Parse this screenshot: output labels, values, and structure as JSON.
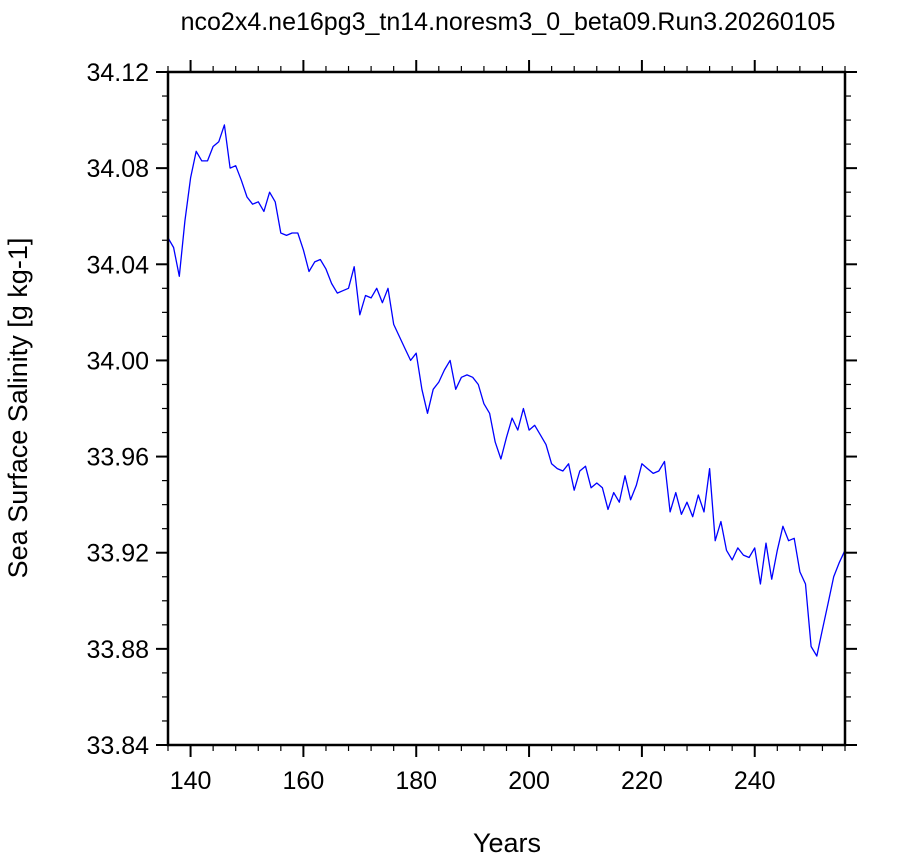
{
  "chart_data": {
    "type": "line",
    "title": "nco2x4.ne16pg3_tn14.noresm3_0_beta09.Run3.20260105",
    "xlabel": "Years",
    "ylabel": "Sea Surface Salinity [g kg-1]",
    "xlim": [
      136,
      256
    ],
    "ylim": [
      33.84,
      34.12
    ],
    "x_ticks": [
      140,
      160,
      180,
      200,
      220,
      240
    ],
    "x_tick_labels": [
      "140",
      "160",
      "180",
      "200",
      "220",
      "240"
    ],
    "y_ticks": [
      33.84,
      33.88,
      33.92,
      33.96,
      34.0,
      34.04,
      34.08,
      34.12
    ],
    "y_tick_labels": [
      "33.84",
      "33.88",
      "33.92",
      "33.96",
      "34.00",
      "34.04",
      "34.08",
      "34.12"
    ],
    "grid": false,
    "line_color": "#0000ff",
    "series": [
      {
        "x": [
          136,
          137,
          138,
          139,
          140,
          141,
          142,
          143,
          144,
          145,
          146,
          147,
          148,
          149,
          150,
          151,
          152,
          153,
          154,
          155,
          156,
          157,
          158,
          159,
          160,
          161,
          162,
          163,
          164,
          165,
          166,
          167,
          168,
          169,
          170,
          171,
          172,
          173,
          174,
          175,
          176,
          177,
          178,
          179,
          180,
          181,
          182,
          183,
          184,
          185,
          186,
          187,
          188,
          189,
          190,
          191,
          192,
          193,
          194,
          195,
          196,
          197,
          198,
          199,
          200,
          201,
          202,
          203,
          204,
          205,
          206,
          207,
          208,
          209,
          210,
          211,
          212,
          213,
          214,
          215,
          216,
          217,
          218,
          219,
          220,
          221,
          222,
          223,
          224,
          225,
          226,
          227,
          228,
          229,
          230,
          231,
          232,
          233,
          234,
          235,
          236,
          237,
          238,
          239,
          240,
          241,
          242,
          243,
          244,
          245,
          246,
          247,
          248,
          249,
          250,
          251,
          252,
          253,
          254,
          255,
          256
        ],
        "values": [
          34.051,
          34.047,
          34.035,
          34.058,
          34.076,
          34.087,
          34.083,
          34.083,
          34.089,
          34.091,
          34.098,
          34.08,
          34.081,
          34.075,
          34.068,
          34.065,
          34.066,
          34.062,
          34.07,
          34.066,
          34.053,
          34.052,
          34.053,
          34.053,
          34.046,
          34.037,
          34.041,
          34.042,
          34.038,
          34.032,
          34.028,
          34.029,
          34.03,
          34.039,
          34.019,
          34.027,
          34.026,
          34.03,
          34.024,
          34.03,
          34.015,
          34.01,
          34.005,
          34.0,
          34.003,
          33.988,
          33.978,
          33.988,
          33.991,
          33.996,
          34.0,
          33.988,
          33.993,
          33.994,
          33.993,
          33.99,
          33.982,
          33.978,
          33.966,
          33.959,
          33.968,
          33.976,
          33.971,
          33.98,
          33.971,
          33.973,
          33.969,
          33.965,
          33.957,
          33.955,
          33.954,
          33.957,
          33.946,
          33.954,
          33.956,
          33.947,
          33.949,
          33.947,
          33.938,
          33.945,
          33.941,
          33.952,
          33.942,
          33.948,
          33.957,
          33.955,
          33.953,
          33.954,
          33.958,
          33.937,
          33.945,
          33.936,
          33.941,
          33.935,
          33.944,
          33.937,
          33.955,
          33.925,
          33.933,
          33.921,
          33.917,
          33.922,
          33.919,
          33.918,
          33.922,
          33.907,
          33.924,
          33.909,
          33.921,
          33.931,
          33.925,
          33.926,
          33.912,
          33.907,
          33.881,
          33.877,
          33.888,
          33.899,
          33.91,
          33.916,
          33.921
        ]
      }
    ]
  }
}
